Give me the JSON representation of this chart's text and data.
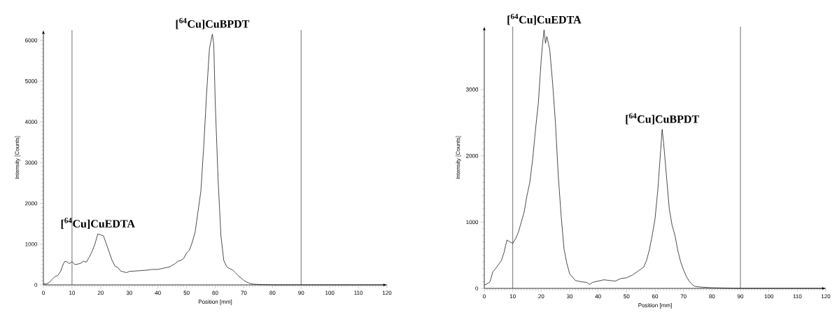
{
  "chart_data": [
    {
      "type": "line",
      "xlabel": "Position [mm]",
      "ylabel": "Intensity [Counts]",
      "color": "#000000",
      "grid": false,
      "xlim": [
        0,
        120
      ],
      "ylim": [
        0,
        6250
      ],
      "xticks": [
        0,
        10,
        20,
        30,
        40,
        50,
        60,
        70,
        80,
        90,
        100,
        110,
        120
      ],
      "yticks": [
        0,
        1000,
        2000,
        3000,
        4000,
        5000,
        6000
      ],
      "x": [
        0,
        1,
        2,
        3,
        4,
        5,
        6,
        7,
        7.5,
        8.5,
        9,
        10,
        11,
        12,
        13,
        14,
        15,
        16,
        17,
        18,
        19,
        20,
        21,
        22,
        23,
        24,
        25,
        26,
        27,
        28,
        29,
        30,
        32,
        34,
        36,
        38,
        40,
        42,
        44,
        46,
        47,
        48,
        49,
        50,
        51,
        52,
        53,
        54,
        55,
        56,
        57,
        58,
        59,
        59.5,
        60,
        61,
        62,
        63,
        64,
        65,
        66,
        67,
        68,
        69,
        70,
        71,
        72,
        73,
        75,
        80,
        90,
        100,
        120
      ],
      "values": [
        30,
        20,
        60,
        130,
        200,
        230,
        330,
        520,
        580,
        560,
        520,
        570,
        500,
        510,
        530,
        580,
        560,
        680,
        820,
        1000,
        1250,
        1230,
        1200,
        1000,
        800,
        600,
        460,
        430,
        340,
        320,
        300,
        330,
        340,
        350,
        360,
        380,
        380,
        410,
        440,
        520,
        580,
        600,
        650,
        780,
        850,
        1050,
        1300,
        1800,
        2300,
        3400,
        4700,
        5800,
        6150,
        5900,
        4500,
        2600,
        1200,
        600,
        450,
        400,
        370,
        300,
        230,
        170,
        110,
        70,
        40,
        20,
        10,
        0,
        0,
        0,
        0
      ],
      "ref_lines": [
        {
          "axis": "x",
          "value": 10
        },
        {
          "axis": "x",
          "value": 90
        }
      ],
      "annotations": [
        {
          "text": "[$^{64}$Cu]CuBPDT",
          "x": 59,
          "y": 6150
        },
        {
          "text": "[$^{64}$Cu]CuEDTA",
          "x": 19,
          "y": 1250
        }
      ]
    },
    {
      "type": "line",
      "xlabel": "Position [mm]",
      "ylabel": "Intensity [Counts]",
      "color": "#000000",
      "grid": false,
      "xlim": [
        0,
        120
      ],
      "ylim": [
        0,
        3950
      ],
      "xticks": [
        0,
        10,
        20,
        30,
        40,
        50,
        60,
        70,
        80,
        90,
        100,
        110,
        120
      ],
      "yticks": [
        0,
        1000,
        2000,
        3000
      ],
      "x": [
        0,
        1,
        2,
        3,
        4,
        5,
        6,
        7,
        7.5,
        8,
        9,
        10,
        11,
        12,
        13,
        14,
        15,
        16,
        17,
        18,
        19,
        20,
        20.5,
        21,
        21.5,
        22,
        23,
        24,
        25,
        26,
        27,
        28,
        29,
        30,
        31,
        32,
        34,
        36,
        37,
        38,
        40,
        42,
        44,
        46,
        48,
        50,
        52,
        54,
        56,
        57,
        58,
        59,
        60,
        61,
        62,
        62.5,
        63,
        64,
        65,
        66,
        67,
        68,
        69,
        70,
        71,
        72,
        73,
        74,
        76,
        80,
        90,
        120
      ],
      "values": [
        50,
        70,
        100,
        250,
        300,
        360,
        420,
        550,
        650,
        730,
        700,
        680,
        750,
        850,
        1000,
        1150,
        1400,
        1600,
        1950,
        2400,
        2800,
        3450,
        3700,
        3900,
        3700,
        3800,
        3600,
        3100,
        2500,
        1700,
        1100,
        600,
        380,
        220,
        170,
        120,
        100,
        90,
        60,
        90,
        110,
        130,
        120,
        110,
        150,
        160,
        200,
        260,
        320,
        420,
        580,
        800,
        1050,
        1500,
        2100,
        2400,
        2200,
        1700,
        1200,
        950,
        800,
        570,
        400,
        280,
        180,
        110,
        60,
        30,
        20,
        10,
        0,
        0
      ],
      "ref_lines": [
        {
          "axis": "x",
          "value": 10
        },
        {
          "axis": "x",
          "value": 90
        }
      ],
      "annotations": [
        {
          "text": "[$^{64}$Cu]CuEDTA",
          "x": 21,
          "y": 3900
        },
        {
          "text": "[$^{64}$Cu]CuBPDT",
          "x": 62.5,
          "y": 2400
        }
      ]
    }
  ]
}
